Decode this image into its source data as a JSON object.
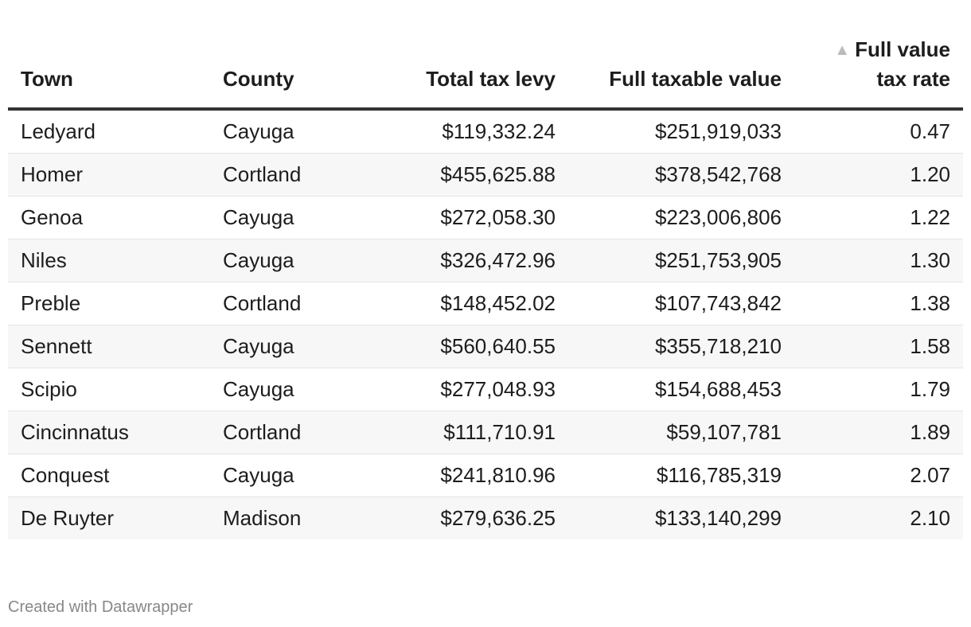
{
  "table": {
    "headers": [
      "Town",
      "County",
      "Total tax levy",
      "Full taxable value",
      "Full value tax rate"
    ],
    "sort_icon": "triangle-up-icon",
    "rows": [
      [
        "Ledyard",
        "Cayuga",
        "$119,332.24",
        "$251,919,033",
        "0.47"
      ],
      [
        "Homer",
        "Cortland",
        "$455,625.88",
        "$378,542,768",
        "1.20"
      ],
      [
        "Genoa",
        "Cayuga",
        "$272,058.30",
        "$223,006,806",
        "1.22"
      ],
      [
        "Niles",
        "Cayuga",
        "$326,472.96",
        "$251,753,905",
        "1.30"
      ],
      [
        "Preble",
        "Cortland",
        "$148,452.02",
        "$107,743,842",
        "1.38"
      ],
      [
        "Sennett",
        "Cayuga",
        "$560,640.55",
        "$355,718,210",
        "1.58"
      ],
      [
        "Scipio",
        "Cayuga",
        "$277,048.93",
        "$154,688,453",
        "1.79"
      ],
      [
        "Cincinnatus",
        "Cortland",
        "$111,710.91",
        "$59,107,781",
        "1.89"
      ],
      [
        "Conquest",
        "Cayuga",
        "$241,810.96",
        "$116,785,319",
        "2.07"
      ],
      [
        "De Ruyter",
        "Madison",
        "$279,636.25",
        "$133,140,299",
        "2.10"
      ]
    ]
  },
  "footer": {
    "credit": "Created with Datawrapper"
  }
}
